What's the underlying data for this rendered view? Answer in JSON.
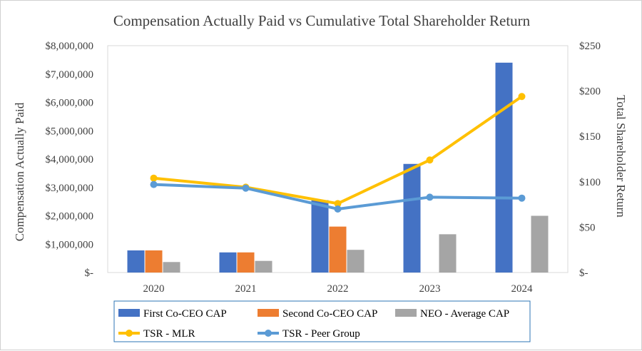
{
  "chart_data": {
    "type": "bar",
    "title": "Compensation Actually Paid vs Cumulative Total  Shareholder Return",
    "ylabel": "Compensation Actually Paid",
    "y2label": "Total Shareholder Return",
    "categories": [
      "2020",
      "2021",
      "2022",
      "2023",
      "2024"
    ],
    "ylim": [
      0,
      8000000
    ],
    "y2lim": [
      0,
      250
    ],
    "yticks": [
      "$-",
      "$1,000,000",
      "$2,000,000",
      "$3,000,000",
      "$4,000,000",
      "$5,000,000",
      "$6,000,000",
      "$7,000,000",
      "$8,000,000"
    ],
    "y2ticks": [
      "$-",
      "$50",
      "$100",
      "$150",
      "$200",
      "$250"
    ],
    "grid": false,
    "legend_position": "bottom",
    "series": [
      {
        "name": "First Co-CEO CAP",
        "type": "bar",
        "axis": "left",
        "color": "#4472c4",
        "values": [
          780000,
          710000,
          2550000,
          3830000,
          7400000
        ]
      },
      {
        "name": "Second Co-CEO CAP",
        "type": "bar",
        "axis": "left",
        "color": "#ed7d31",
        "values": [
          780000,
          710000,
          1620000,
          0,
          0
        ]
      },
      {
        "name": "NEO - Average CAP",
        "type": "bar",
        "axis": "left",
        "color": "#a5a5a5",
        "values": [
          370000,
          410000,
          800000,
          1350000,
          2000000
        ]
      },
      {
        "name": "TSR - MLR",
        "type": "line",
        "axis": "right",
        "color": "#ffc000",
        "values": [
          104,
          94,
          76,
          124,
          194
        ]
      },
      {
        "name": "TSR - Peer Group",
        "type": "line",
        "axis": "right",
        "color": "#5b9bd5",
        "values": [
          97,
          93,
          70,
          83,
          82
        ]
      }
    ]
  }
}
